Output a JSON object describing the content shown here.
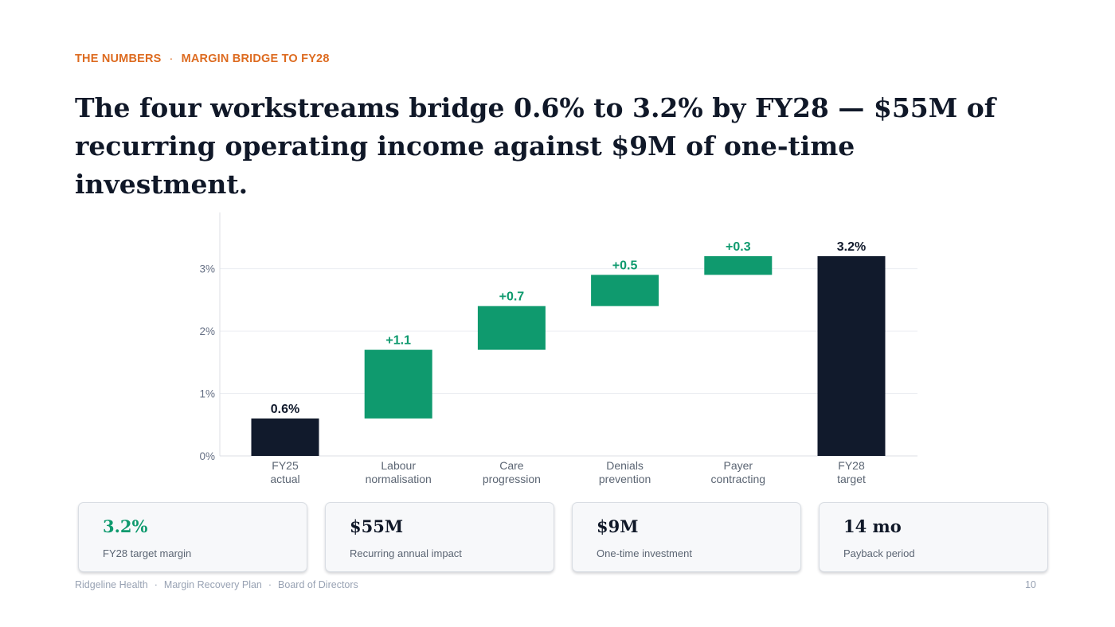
{
  "header": {
    "eyebrow_section": "THE NUMBERS",
    "eyebrow_separator": "·",
    "eyebrow_topic": "MARGIN BRIDGE TO FY28",
    "headline": "The four workstreams bridge 0.6% to 3.2% by FY28 — $55M of recurring operating income against $9M of one-time investment."
  },
  "chart_data": {
    "type": "bar",
    "subtype": "waterfall",
    "title": "",
    "xlabel": "",
    "ylabel": "",
    "ylim": [
      0,
      3.9
    ],
    "yticks": [
      0,
      1,
      2,
      3
    ],
    "ytick_labels": [
      "0%",
      "1%",
      "2%",
      "3%"
    ],
    "grid": true,
    "categories": [
      [
        "FY25",
        "actual"
      ],
      [
        "Labour",
        "normalisation"
      ],
      [
        "Care",
        "progression"
      ],
      [
        "Denials",
        "prevention"
      ],
      [
        "Payer",
        "contracting"
      ],
      [
        "FY28",
        "target"
      ]
    ],
    "bars": [
      {
        "kind": "total",
        "start": 0,
        "end": 0.6,
        "label": "0.6%"
      },
      {
        "kind": "delta",
        "start": 0.6,
        "end": 1.7,
        "label": "+1.1"
      },
      {
        "kind": "delta",
        "start": 1.7,
        "end": 2.4,
        "label": "+0.7"
      },
      {
        "kind": "delta",
        "start": 2.4,
        "end": 2.9,
        "label": "+0.5"
      },
      {
        "kind": "delta",
        "start": 2.9,
        "end": 3.2,
        "label": "+0.3"
      },
      {
        "kind": "total",
        "start": 0,
        "end": 3.2,
        "label": "3.2%"
      }
    ],
    "colors": {
      "total": "#111a2c",
      "delta": "#0f9a6e"
    }
  },
  "kpis": [
    {
      "value": "3.2%",
      "label": "FY28 target margin"
    },
    {
      "value": "$55M",
      "label": "Recurring annual impact"
    },
    {
      "value": "$9M",
      "label": "One-time investment"
    },
    {
      "value": "14 mo",
      "label": "Payback period"
    }
  ],
  "footer": {
    "org": "Ridgeline Health",
    "separator": "·",
    "deck": "Margin Recovery Plan",
    "audience": "Board of Directors",
    "page_number": "10"
  },
  "colors": {
    "accent_orange": "#dd6b20",
    "accent_green": "#0f9a6e",
    "navy": "#111a2c"
  }
}
